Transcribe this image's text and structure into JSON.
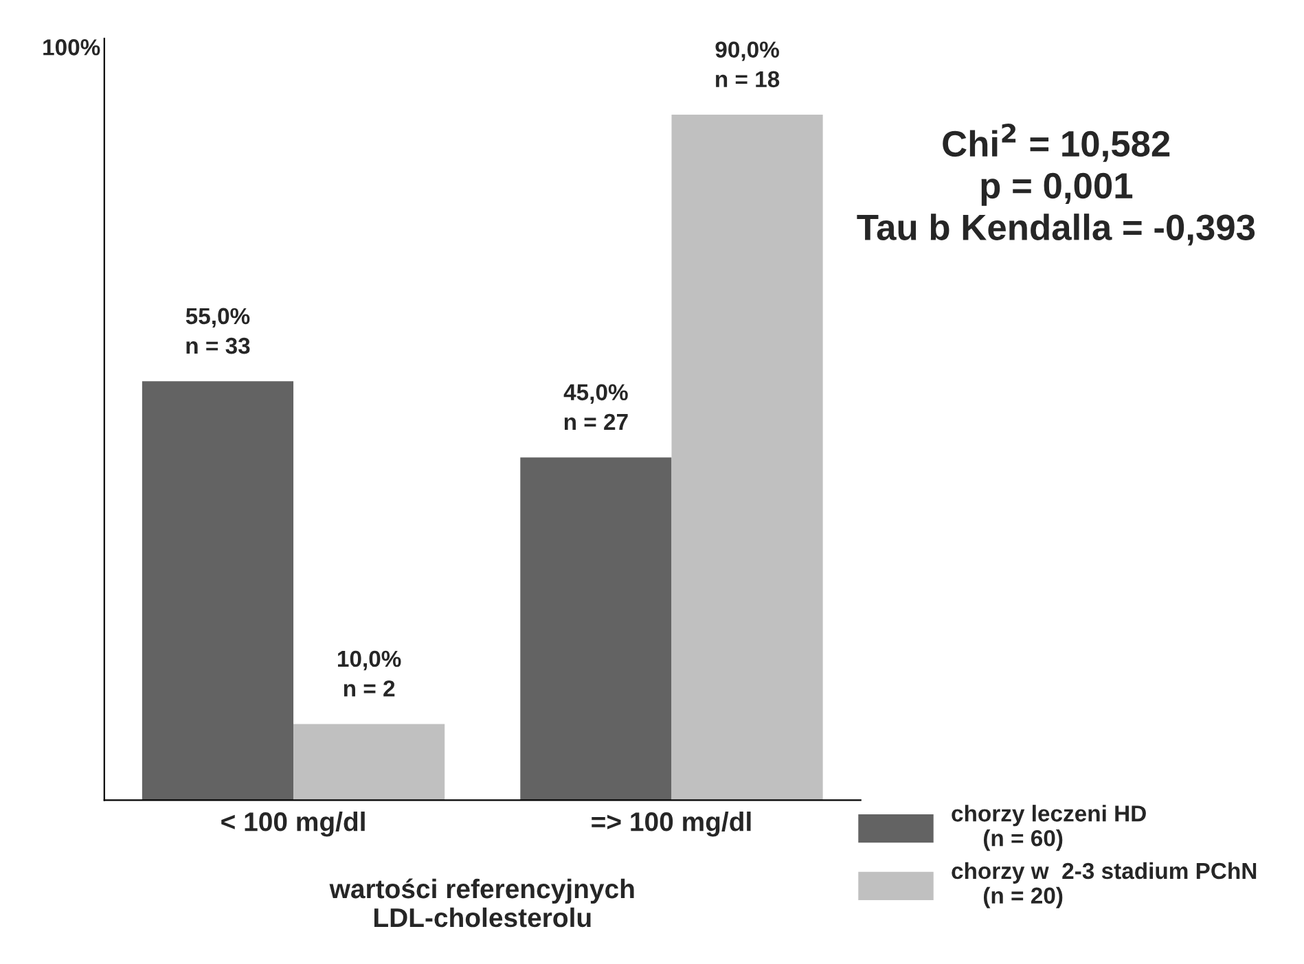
{
  "chart_data": {
    "type": "bar",
    "categories": [
      "< 100 mg/dl",
      "=> 100 mg/dl"
    ],
    "series": [
      {
        "name": "chorzy leczeni HD\n     (n = 60)",
        "color": "#636363",
        "values": [
          55,
          45
        ],
        "value_labels": [
          "55,0%\nn = 33",
          "45,0%\nn = 27"
        ]
      },
      {
        "name": "chorzy w  2-3 stadium PChN\n     (n = 20)",
        "color": "#c0c0c0",
        "values": [
          10,
          90
        ],
        "value_labels": [
          "10,0%\nn = 2",
          "90,0%\nn = 18"
        ]
      }
    ],
    "xlabel": "wartości referencyjnych\nLDL-cholesterolu",
    "ylim": [
      0,
      100
    ],
    "annotations": [
      "Chi$^{2}$ = 10,582\np = 0,001\nTau b Kendalla = -0,393",
      "100%"
    ],
    "grid": false,
    "legend": "bottom right"
  }
}
